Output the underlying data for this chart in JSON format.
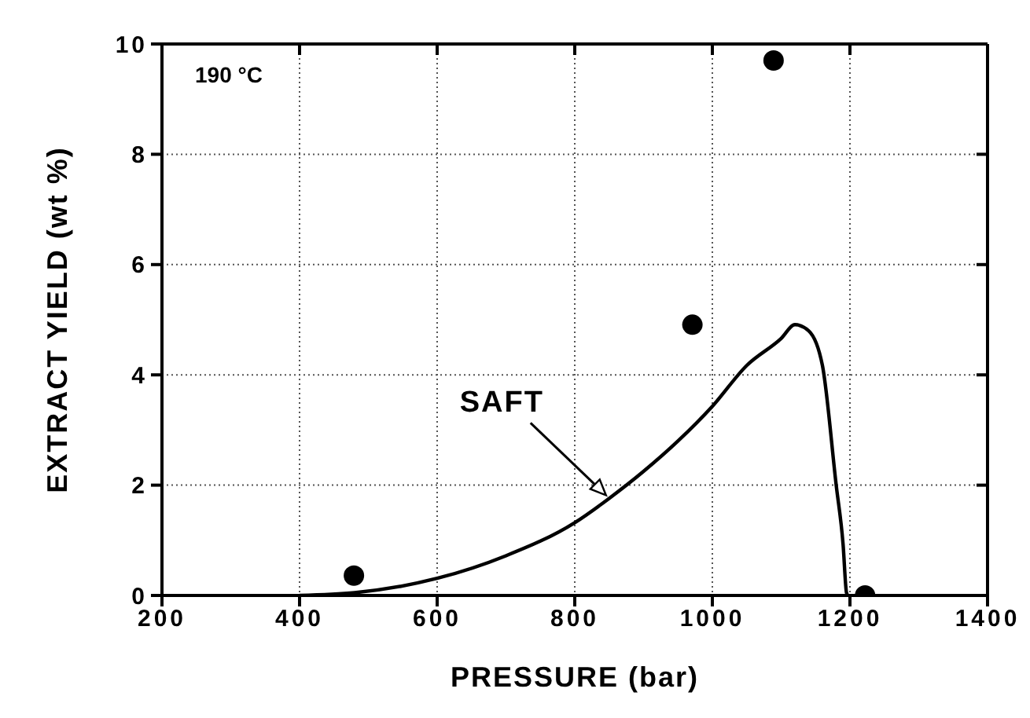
{
  "chart_data": {
    "type": "scatter",
    "xlabel": "PRESSURE (bar)",
    "ylabel": "EXTRACT YIELD (wt %)",
    "annotations": [
      "190 °C"
    ],
    "xlim": [
      200,
      1400
    ],
    "xticks": [
      200,
      400,
      600,
      800,
      1000,
      1200,
      1400
    ],
    "ylim": [
      0,
      10
    ],
    "yticks": [
      0,
      2,
      4,
      6,
      8,
      10
    ],
    "grid": true,
    "legend": false,
    "marker": "circle",
    "series": [
      {
        "color": "#000000",
        "x": [
          479,
          971,
          1089,
          1222
        ],
        "values": [
          0.36,
          4.91,
          9.7,
          0
        ]
      },
      {
        "type": "line",
        "name": "SAFT",
        "color": "#000000",
        "marker": "none",
        "line_style": "solid",
        "x": [
          400,
          480,
          600,
          700,
          800,
          850,
          900,
          950,
          1000,
          1050,
          1100,
          1120,
          1140,
          1160,
          1180,
          1190,
          1195,
          1197
        ],
        "values": [
          0,
          0.05,
          0.31,
          0.72,
          1.32,
          1.76,
          2.25,
          2.8,
          3.43,
          4.17,
          4.66,
          4.91,
          4.8,
          4.17,
          2.0,
          0.93,
          0.05,
          0
        ]
      }
    ]
  }
}
